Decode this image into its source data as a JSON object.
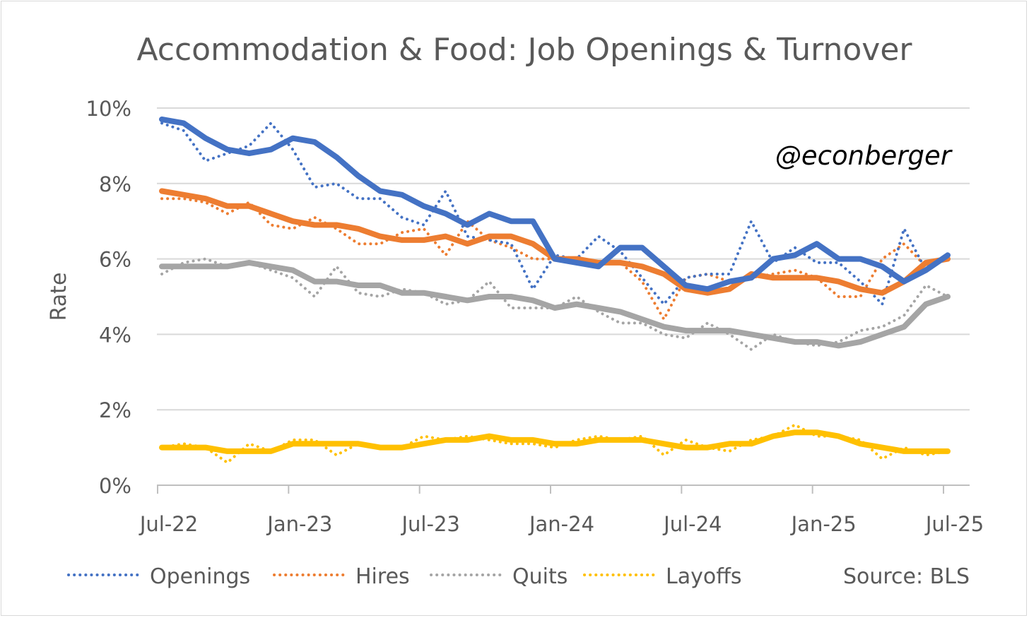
{
  "chart_data": {
    "type": "line",
    "title": "Accommodation & Food: Job Openings & Turnover",
    "ylabel": "Rate",
    "xlabel": "",
    "watermark": "@econberger",
    "source": "Source: BLS",
    "ylim": [
      0,
      10
    ],
    "yticks": [
      "0%",
      "2%",
      "4%",
      "6%",
      "8%",
      "10%"
    ],
    "ytick_values": [
      0,
      2,
      4,
      6,
      8,
      10
    ],
    "xticks": [
      "Jul-22",
      "Jan-23",
      "Jul-23",
      "Jan-24",
      "Jul-24",
      "Jan-25",
      "Jul-25"
    ],
    "x": [
      "2022-07",
      "2022-08",
      "2022-09",
      "2022-10",
      "2022-11",
      "2022-12",
      "2023-01",
      "2023-02",
      "2023-03",
      "2023-04",
      "2023-05",
      "2023-06",
      "2023-07",
      "2023-08",
      "2023-09",
      "2023-10",
      "2023-11",
      "2023-12",
      "2024-01",
      "2024-02",
      "2024-03",
      "2024-04",
      "2024-05",
      "2024-06",
      "2024-07",
      "2024-08",
      "2024-09",
      "2024-10",
      "2024-11",
      "2024-12",
      "2025-01",
      "2025-02",
      "2025-03",
      "2025-04",
      "2025-05",
      "2025-06",
      "2025-07"
    ],
    "grid": true,
    "legend_position": "bottom",
    "series": [
      {
        "name": "Openings",
        "color": "#4472c4",
        "monthly": [
          9.6,
          9.4,
          8.6,
          8.8,
          9.0,
          9.6,
          8.9,
          7.9,
          8.0,
          7.6,
          7.6,
          7.1,
          6.9,
          7.8,
          6.6,
          6.5,
          6.4,
          5.2,
          6.1,
          6.0,
          6.6,
          6.2,
          5.5,
          4.8,
          5.5,
          5.6,
          5.6,
          7.0,
          5.9,
          6.3,
          5.9,
          5.9,
          5.4,
          4.8,
          6.8,
          5.7,
          6.1
        ],
        "three_month_avg": [
          9.7,
          9.6,
          9.2,
          8.9,
          8.8,
          8.9,
          9.2,
          9.1,
          8.7,
          8.2,
          7.8,
          7.7,
          7.4,
          7.2,
          6.9,
          7.2,
          7.0,
          7.0,
          6.0,
          5.9,
          5.8,
          6.3,
          6.3,
          5.8,
          5.3,
          5.2,
          5.4,
          5.5,
          6.0,
          6.1,
          6.4,
          6.0,
          6.0,
          5.8,
          5.4,
          5.7,
          6.1
        ]
      },
      {
        "name": "Hires",
        "color": "#ed7d31",
        "monthly": [
          7.6,
          7.6,
          7.5,
          7.2,
          7.5,
          6.9,
          6.8,
          7.1,
          6.8,
          6.4,
          6.4,
          6.7,
          6.8,
          6.1,
          7.0,
          6.5,
          6.3,
          6.0,
          6.0,
          5.9,
          5.9,
          5.9,
          5.4,
          4.4,
          5.5,
          5.6,
          5.4,
          5.5,
          5.6,
          5.7,
          5.5,
          5.0,
          5.0,
          6.0,
          6.4,
          5.8,
          6.0
        ],
        "three_month_avg": [
          7.8,
          7.7,
          7.6,
          7.4,
          7.4,
          7.2,
          7.0,
          6.9,
          6.9,
          6.8,
          6.6,
          6.5,
          6.5,
          6.6,
          6.4,
          6.6,
          6.6,
          6.4,
          6.0,
          6.0,
          5.9,
          5.9,
          5.8,
          5.6,
          5.2,
          5.1,
          5.2,
          5.6,
          5.5,
          5.5,
          5.5,
          5.4,
          5.2,
          5.1,
          5.4,
          5.9,
          6.0
        ]
      },
      {
        "name": "Quits",
        "color": "#a5a5a5",
        "monthly": [
          5.6,
          5.9,
          6.0,
          5.8,
          5.9,
          5.7,
          5.5,
          5.0,
          5.8,
          5.1,
          5.0,
          5.2,
          5.1,
          4.8,
          4.9,
          5.4,
          4.7,
          4.7,
          4.7,
          5.0,
          4.6,
          4.3,
          4.3,
          4.0,
          3.9,
          4.3,
          4.0,
          3.6,
          4.0,
          3.8,
          3.7,
          3.8,
          4.1,
          4.2,
          4.5,
          5.3,
          5.0
        ],
        "three_month_avg": [
          5.8,
          5.8,
          5.8,
          5.8,
          5.9,
          5.8,
          5.7,
          5.4,
          5.4,
          5.3,
          5.3,
          5.1,
          5.1,
          5.0,
          4.9,
          5.0,
          5.0,
          4.9,
          4.7,
          4.8,
          4.7,
          4.6,
          4.4,
          4.2,
          4.1,
          4.1,
          4.1,
          4.0,
          3.9,
          3.8,
          3.8,
          3.7,
          3.8,
          4.0,
          4.2,
          4.8,
          5.0
        ]
      },
      {
        "name": "Layoffs",
        "color": "#ffc000",
        "monthly": [
          1.0,
          1.1,
          1.0,
          0.6,
          1.1,
          0.9,
          1.2,
          1.2,
          0.8,
          1.1,
          1.0,
          1.0,
          1.3,
          1.2,
          1.3,
          1.2,
          1.1,
          1.1,
          1.0,
          1.2,
          1.3,
          1.2,
          1.3,
          0.8,
          1.2,
          1.0,
          0.9,
          1.2,
          1.3,
          1.6,
          1.3,
          1.3,
          1.2,
          0.7,
          1.0,
          0.8,
          0.9
        ],
        "three_month_avg": [
          1.0,
          1.0,
          1.0,
          0.9,
          0.9,
          0.9,
          1.1,
          1.1,
          1.1,
          1.1,
          1.0,
          1.0,
          1.1,
          1.2,
          1.2,
          1.3,
          1.2,
          1.2,
          1.1,
          1.1,
          1.2,
          1.2,
          1.2,
          1.1,
          1.0,
          1.0,
          1.1,
          1.1,
          1.3,
          1.4,
          1.4,
          1.3,
          1.1,
          1.0,
          0.9,
          0.9,
          0.9
        ]
      }
    ]
  }
}
